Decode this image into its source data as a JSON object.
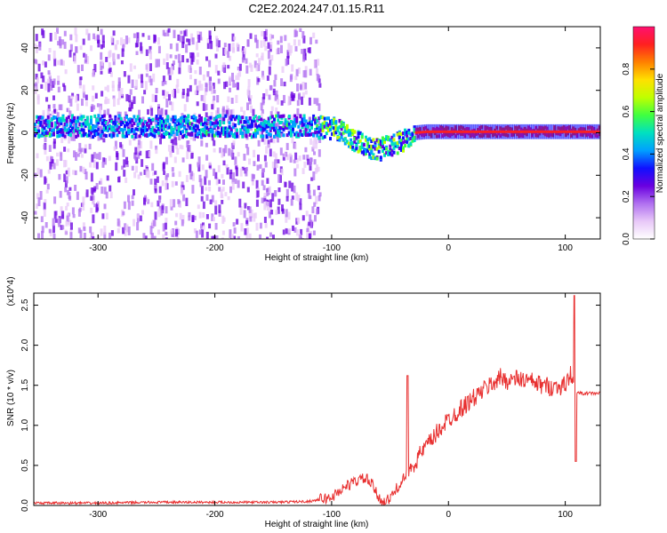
{
  "chart_data": [
    {
      "type": "heatmap",
      "title": "C2E2.2024.247.01.15.R11",
      "xlabel": "Height of straight line (km)",
      "ylabel": "Frequency (Hz)",
      "xlim": [
        -355,
        130
      ],
      "ylim": [
        -50,
        50
      ],
      "x_ticks": [
        -300,
        -200,
        -100,
        0,
        100
      ],
      "y_ticks": [
        -40,
        -20,
        0,
        20,
        40
      ],
      "colorbar": {
        "label": "Normalized spectral amplitude",
        "range": [
          0.0,
          1.0
        ],
        "ticks": [
          0.0,
          0.2,
          0.4,
          0.6,
          0.8
        ],
        "tick_labels": [
          "0.0",
          "0.2",
          "0.4",
          "0.6",
          "0.8"
        ],
        "colormap": [
          "#ffffff",
          "#e8c8f8",
          "#b070f0",
          "#6a00e0",
          "#1010ff",
          "#00a0ff",
          "#00e0c0",
          "#40ff40",
          "#c0ff00",
          "#ffe000",
          "#ff8000",
          "#ff2020",
          "#ff1070"
        ]
      },
      "ridge": {
        "x": [
          -355,
          -300,
          -250,
          -200,
          -150,
          -120,
          -100,
          -90,
          -80,
          -70,
          -60,
          -50,
          -45,
          -40,
          -35,
          -30,
          -20,
          0,
          50,
          100,
          130
        ],
        "y": [
          3,
          3,
          3,
          3,
          3,
          3,
          2,
          0,
          -4,
          -7,
          -8,
          -6,
          -5,
          -4,
          -2,
          0,
          0.5,
          0.5,
          0.5,
          0.5,
          0.5
        ]
      },
      "grid": false
    },
    {
      "type": "line",
      "title": "",
      "xlabel": "Height of straight line (km)",
      "ylabel": "SNR (10 * v/v)",
      "y_multiplier": "(x10^4)",
      "xlim": [
        -355,
        130
      ],
      "ylim": [
        0,
        2.65
      ],
      "x_ticks": [
        -300,
        -200,
        -100,
        0,
        100
      ],
      "y_ticks": [
        0.0,
        0.5,
        1.0,
        1.5,
        2.0,
        2.5
      ],
      "y_tick_labels": [
        "0.0",
        "0.5",
        "1.0",
        "1.5",
        "2.0",
        "2.5"
      ],
      "color": "#e83030",
      "series": [
        {
          "x": [
            -355,
            -300,
            -250,
            -200,
            -150,
            -120,
            -100,
            -90,
            -80,
            -75,
            -70,
            -65,
            -60,
            -55,
            -50,
            -45,
            -40,
            -35,
            -30,
            -25,
            -20,
            -15,
            -10,
            -5,
            0,
            10,
            20,
            30,
            40,
            45,
            50,
            60,
            70,
            80,
            90,
            100,
            105,
            108,
            112,
            120,
            130
          ],
          "values": [
            0.03,
            0.03,
            0.04,
            0.04,
            0.04,
            0.05,
            0.1,
            0.22,
            0.3,
            0.33,
            0.33,
            0.25,
            0.1,
            0.05,
            0.08,
            0.2,
            0.3,
            0.4,
            0.52,
            0.62,
            0.72,
            0.8,
            0.9,
            1.0,
            1.07,
            1.2,
            1.32,
            1.44,
            1.55,
            1.6,
            1.56,
            1.58,
            1.55,
            1.5,
            1.48,
            1.5,
            1.65,
            1.42,
            1.4,
            1.4,
            1.4
          ]
        }
      ],
      "grid": false
    }
  ]
}
